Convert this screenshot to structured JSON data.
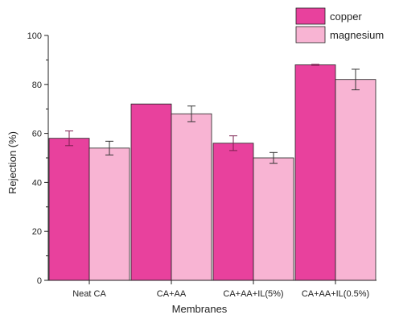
{
  "chart_data": {
    "type": "bar",
    "categories": [
      "Neat CA",
      "CA+AA",
      "CA+AA+IL(5%)",
      "CA+AA+IL(0.5%)"
    ],
    "series": [
      {
        "name": "copper",
        "values": [
          58,
          72,
          56,
          88
        ],
        "errors": [
          3,
          0,
          3,
          0.2
        ],
        "color": "#e8419d"
      },
      {
        "name": "magnesium",
        "values": [
          54,
          68,
          50,
          82
        ],
        "errors": [
          2.8,
          3.2,
          2.2,
          4.2
        ],
        "color": "#f8b4d3"
      }
    ],
    "title": "",
    "xlabel": "Membranes",
    "ylabel": "Rejection (%)",
    "ylim": [
      0,
      100
    ],
    "yticks": [
      0,
      20,
      40,
      60,
      80,
      100
    ],
    "grid": false,
    "legend": "top-right"
  }
}
